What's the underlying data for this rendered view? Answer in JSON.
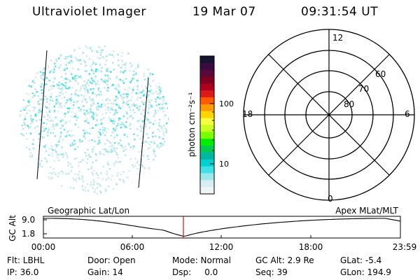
{
  "header": {
    "title": "Ultraviolet Imager",
    "date": "19 Mar 07",
    "time": "09:31:54 UT"
  },
  "colorbar": {
    "unit_label": "photon cm⁻²s⁻¹",
    "ticks": [
      "100",
      "10"
    ],
    "colors": [
      "#141432",
      "#3a0a42",
      "#5a0a3a",
      "#800020",
      "#b00020",
      "#dd1a1a",
      "#ff5a00",
      "#ff9a00",
      "#ffd400",
      "#f5ff40",
      "#c8ff20",
      "#7aff00",
      "#00ee00",
      "#00cc50",
      "#00b8a0",
      "#00d0d0",
      "#40e0e8",
      "#9ae8ee",
      "#d8eef0",
      "#eef4f4"
    ]
  },
  "polar_grid": {
    "mlt_labels": [
      "12",
      "18",
      "6",
      "0"
    ],
    "lat_labels": [
      "60",
      "70",
      "80"
    ]
  },
  "altitude_panel": {
    "axis_title": "GC Alt",
    "y_ticks": [
      "9.0",
      "1.8"
    ],
    "left_label": "Geographic Lat/Lon",
    "right_label": "Apex MLat/MLT",
    "x_ticks": [
      "00:00",
      "06:00",
      "12:00",
      "18:00",
      "23:59"
    ],
    "curve_color": "#000000",
    "marker_color": "#cc0000"
  },
  "status": {
    "filter": "Flt: LBHL",
    "door": "Door: Open",
    "mode": "Mode: Normal",
    "gc_alt": "GC Alt: 2.9 Re",
    "glat": "GLat:  -5.4",
    "ip": "IP: 36.0",
    "gain": "Gain: 14",
    "dsp": "Dsp:     0.0",
    "seq": "Seq: 39",
    "glon": "GLon: 194.9"
  },
  "image_colors": {
    "background": "#ffffff",
    "aurora_primary": "#40e0e8",
    "aurora_faint": "#c8e8ea"
  }
}
